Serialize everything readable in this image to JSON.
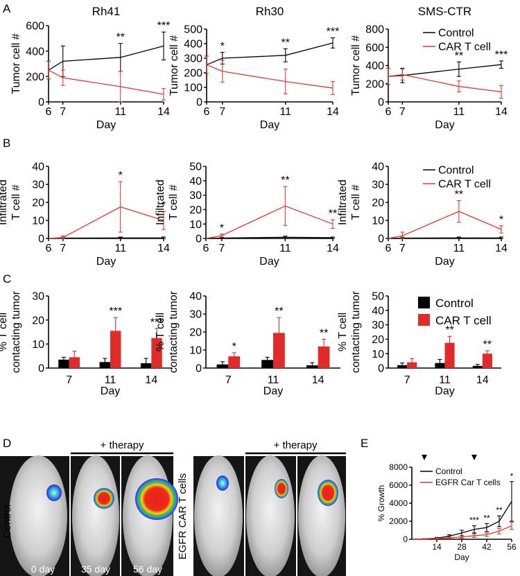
{
  "panel_labels": {
    "a": "A",
    "b": "B",
    "c": "C",
    "d": "D",
    "e": "E"
  },
  "colors": {
    "control": "#000000",
    "car": "#e03a2c",
    "bar_control": "#000000",
    "bar_car": "#e02b2b"
  },
  "legend": {
    "control": "Control",
    "car": "CAR T cell"
  },
  "panel_d": {
    "group1_label": "Control",
    "group2_label": "EGFR CAR T cells",
    "therapy_label": "+ therapy",
    "day_labels": [
      "0 day",
      "35 day",
      "56 day"
    ]
  },
  "chart_data": [
    {
      "type": "line",
      "id": "A1",
      "title": "Rh41",
      "xlabel": "Day",
      "ylabel": "Tumor cell #",
      "xlim": [
        6,
        14
      ],
      "xticks": [
        6,
        7,
        11,
        14
      ],
      "ylim": [
        0,
        600
      ],
      "yticks": [
        0,
        200,
        400,
        600
      ],
      "x": [
        6,
        7,
        11,
        14
      ],
      "series": [
        {
          "name": "Control",
          "values": [
            250,
            320,
            350,
            440
          ],
          "err": [
            70,
            120,
            110,
            110
          ]
        },
        {
          "name": "CAR T cell",
          "values": [
            250,
            190,
            120,
            60
          ],
          "err": [
            70,
            60,
            120,
            45
          ]
        }
      ],
      "annotations": [
        {
          "x": 11,
          "label": "**"
        },
        {
          "x": 14,
          "label": "***"
        }
      ]
    },
    {
      "type": "line",
      "id": "A2",
      "title": "Rh30",
      "xlabel": "Day",
      "ylabel": "Tumor cell #",
      "xlim": [
        6,
        14
      ],
      "xticks": [
        6,
        7,
        11,
        14
      ],
      "ylim": [
        0,
        500
      ],
      "yticks": [
        0,
        100,
        200,
        300,
        400,
        500
      ],
      "x": [
        6,
        7,
        11,
        14
      ],
      "series": [
        {
          "name": "Control",
          "values": [
            255,
            300,
            320,
            405
          ],
          "err": [
            60,
            40,
            45,
            35
          ]
        },
        {
          "name": "CAR T cell",
          "values": [
            255,
            210,
            140,
            95
          ],
          "err": [
            60,
            75,
            85,
            45
          ]
        }
      ],
      "annotations": [
        {
          "x": 7,
          "label": "*"
        },
        {
          "x": 11,
          "label": "**"
        },
        {
          "x": 14,
          "label": "***"
        }
      ]
    },
    {
      "type": "line",
      "id": "A3",
      "title": "SMS-CTR",
      "xlabel": "Day",
      "ylabel": "Tumor cell #",
      "xlim": [
        6,
        14
      ],
      "xticks": [
        6,
        7,
        11,
        14
      ],
      "ylim": [
        0,
        800
      ],
      "yticks": [
        0,
        200,
        400,
        600,
        800
      ],
      "x": [
        6,
        7,
        11,
        14
      ],
      "legend_entries": [
        "Control",
        "CAR T cell"
      ],
      "series": [
        {
          "name": "Control",
          "values": [
            280,
            290,
            360,
            410
          ],
          "err": [
            90,
            80,
            80,
            40
          ]
        },
        {
          "name": "CAR T cell",
          "values": [
            280,
            300,
            170,
            110
          ],
          "err": [
            90,
            60,
            60,
            70
          ]
        }
      ],
      "annotations": [
        {
          "x": 11,
          "label": "**"
        },
        {
          "x": 14,
          "label": "***"
        }
      ]
    },
    {
      "type": "line",
      "id": "B1",
      "xlabel": "Day",
      "ylabel": [
        "Infiltrated",
        "T cell #"
      ],
      "xlim": [
        6,
        14
      ],
      "xticks": [
        6,
        7,
        11,
        14
      ],
      "ylim": [
        0,
        40
      ],
      "yticks": [
        0,
        10,
        20,
        30,
        40
      ],
      "x": [
        6,
        7,
        11,
        14
      ],
      "series": [
        {
          "name": "Control",
          "values": [
            0,
            0.2,
            0.3,
            0.3
          ],
          "err": [
            0,
            0.5,
            0.5,
            0.5
          ]
        },
        {
          "name": "CAR T cell",
          "values": [
            0,
            0.5,
            17.5,
            10
          ],
          "err": [
            0,
            1,
            14,
            5
          ]
        }
      ],
      "annotations": [
        {
          "x": 11,
          "label": "*"
        },
        {
          "x": 14,
          "label": "*"
        }
      ]
    },
    {
      "type": "line",
      "id": "B2",
      "xlabel": "Day",
      "ylabel": [
        "Infiltrated",
        "T cell #"
      ],
      "xlim": [
        6,
        14
      ],
      "xticks": [
        6,
        7,
        11,
        14
      ],
      "ylim": [
        0,
        50
      ],
      "yticks": [
        0,
        10,
        20,
        30,
        40,
        50
      ],
      "x": [
        6,
        7,
        11,
        14
      ],
      "series": [
        {
          "name": "Control",
          "values": [
            0,
            0.3,
            0.8,
            0.5
          ],
          "err": [
            0,
            0.5,
            0.8,
            0.5
          ]
        },
        {
          "name": "CAR T cell",
          "values": [
            0,
            2,
            22.5,
            10
          ],
          "err": [
            0,
            1,
            13.5,
            3
          ]
        }
      ],
      "annotations": [
        {
          "x": 7,
          "label": "*"
        },
        {
          "x": 11,
          "label": "**"
        },
        {
          "x": 14,
          "label": "**"
        }
      ]
    },
    {
      "type": "line",
      "id": "B3",
      "xlabel": "Day",
      "ylabel": [
        "Infiltrated",
        "T cell #"
      ],
      "xlim": [
        6,
        14
      ],
      "xticks": [
        6,
        7,
        11,
        14
      ],
      "ylim": [
        0,
        40
      ],
      "yticks": [
        0,
        10,
        20,
        30,
        40
      ],
      "x": [
        6,
        7,
        11,
        14
      ],
      "legend_entries": [
        "Control",
        "CAR T cell"
      ],
      "series": [
        {
          "name": "Control",
          "values": [
            0,
            0.2,
            0.3,
            0.3
          ],
          "err": [
            0,
            0.5,
            0.5,
            0.5
          ]
        },
        {
          "name": "CAR T cell",
          "values": [
            0,
            1.5,
            15,
            5
          ],
          "err": [
            0,
            2,
            6,
            2
          ]
        }
      ],
      "annotations": [
        {
          "x": 11,
          "label": "**"
        },
        {
          "x": 14,
          "label": "*"
        }
      ]
    },
    {
      "type": "bar",
      "id": "C1",
      "xlabel": "Day",
      "ylabel": [
        "% T cell",
        "contacting tumor"
      ],
      "categories": [
        "7",
        "11",
        "14"
      ],
      "ylim": [
        0,
        30
      ],
      "yticks": [
        0,
        10,
        20,
        30
      ],
      "series": [
        {
          "name": "Control",
          "values": [
            3.5,
            2.5,
            2
          ],
          "err": [
            1,
            1.5,
            2
          ]
        },
        {
          "name": "CAR T cell",
          "values": [
            4.5,
            15.5,
            12.5
          ],
          "err": [
            2.5,
            5.5,
            4
          ]
        }
      ],
      "annotations": [
        {
          "category": "11",
          "label": "***"
        },
        {
          "category": "14",
          "label": "***"
        }
      ]
    },
    {
      "type": "bar",
      "id": "C2",
      "xlabel": "Day",
      "ylabel": [
        "% T cell",
        "contacting tumor"
      ],
      "categories": [
        "7",
        "11",
        "14"
      ],
      "ylim": [
        0,
        40
      ],
      "yticks": [
        0,
        10,
        20,
        30,
        40
      ],
      "series": [
        {
          "name": "Control",
          "values": [
            2,
            4.5,
            1.5
          ],
          "err": [
            1.5,
            1.5,
            1.5
          ]
        },
        {
          "name": "CAR T cell",
          "values": [
            6.5,
            19.5,
            12
          ],
          "err": [
            2,
            8.5,
            4
          ]
        }
      ],
      "annotations": [
        {
          "category": "7",
          "label": "*"
        },
        {
          "category": "11",
          "label": "**"
        },
        {
          "category": "14",
          "label": "**"
        }
      ]
    },
    {
      "type": "bar",
      "id": "C3",
      "xlabel": "Day",
      "ylabel": [
        "% T cell",
        "contacting tumor"
      ],
      "categories": [
        "7",
        "11",
        "14"
      ],
      "ylim": [
        0,
        50
      ],
      "yticks": [
        0,
        10,
        20,
        30,
        40,
        50
      ],
      "legend_entries": [
        "Control",
        "CAR T cell"
      ],
      "series": [
        {
          "name": "Control",
          "values": [
            2,
            3.5,
            1.5
          ],
          "err": [
            1.5,
            2.5,
            1
          ]
        },
        {
          "name": "CAR T cell",
          "values": [
            4,
            17.5,
            10
          ],
          "err": [
            2.5,
            4.5,
            2
          ]
        }
      ],
      "annotations": [
        {
          "category": "11",
          "label": "**"
        },
        {
          "category": "14",
          "label": "**"
        }
      ]
    },
    {
      "type": "line",
      "id": "E",
      "xlabel": "Day",
      "ylabel": "% Growth",
      "xlim": [
        0,
        56
      ],
      "xticks": [
        14,
        28,
        42,
        56
      ],
      "ylim": [
        0,
        8000
      ],
      "yticks": [
        0,
        2000,
        4000,
        6000,
        8000
      ],
      "x": [
        0,
        7,
        14,
        21,
        28,
        35,
        42,
        49,
        56
      ],
      "legend_entries": [
        "Control",
        "EGFR Car T cells"
      ],
      "arrows_at_day": [
        7,
        35
      ],
      "series": [
        {
          "name": "Control",
          "values": [
            0,
            50,
            120,
            350,
            700,
            1100,
            1300,
            2000,
            4200
          ],
          "err": [
            0,
            30,
            80,
            150,
            300,
            400,
            450,
            600,
            2200
          ]
        },
        {
          "name": "EGFR Car T cells",
          "values": [
            0,
            40,
            80,
            150,
            250,
            400,
            500,
            900,
            1500
          ],
          "err": [
            0,
            30,
            50,
            80,
            120,
            200,
            200,
            300,
            400
          ]
        }
      ],
      "annotations": [
        {
          "x": 35,
          "label": "***"
        },
        {
          "x": 42,
          "label": "**"
        },
        {
          "x": 49,
          "label": "**"
        },
        {
          "x": 56,
          "label": "*"
        }
      ]
    }
  ]
}
